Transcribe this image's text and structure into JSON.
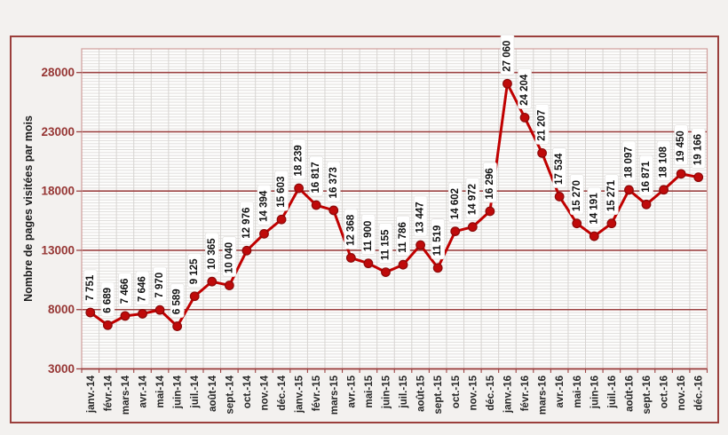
{
  "figure": {
    "background": "#f3f1ef",
    "border_color": "#9b3f3c",
    "plot_background": "#fdfdfc"
  },
  "chart_data": {
    "type": "line",
    "title": "",
    "xlabel": "",
    "ylabel": "Nombre de pages visitées par mois",
    "legend": "none",
    "categories": [
      "janv.-14",
      "févr.-14",
      "mars-14",
      "avr.-14",
      "mai-14",
      "juin-14",
      "juil.-14",
      "août-14",
      "sept.-14",
      "oct.-14",
      "nov.-14",
      "déc.-14",
      "janv.-15",
      "févr.-15",
      "mars-15",
      "avr.-15",
      "mai-15",
      "juin-15",
      "juil.-15",
      "août-15",
      "sept.-15",
      "oct.-15",
      "nov.-15",
      "déc.-15",
      "janv.-16",
      "févr.-16",
      "mars-16",
      "avr.-16",
      "mai-16",
      "juin-16",
      "juil.-16",
      "août-16",
      "sept.-16",
      "oct.-16",
      "nov.-16",
      "déc.-16"
    ],
    "values": [
      7751,
      6689,
      7466,
      7646,
      7970,
      6589,
      9125,
      10365,
      10040,
      12976,
      14394,
      15603,
      18239,
      16817,
      16373,
      12368,
      11900,
      11155,
      11786,
      13447,
      11519,
      14602,
      14972,
      16296,
      27060,
      24204,
      21207,
      17534,
      15270,
      14191,
      15271,
      18097,
      16871,
      18108,
      19450,
      19166
    ],
    "data_labels": [
      "7 751",
      "6 689",
      "7 466",
      "7 646",
      "7 970",
      "6 589",
      "9 125",
      "10 365",
      "10 040",
      "12 976",
      "14 394",
      "15 603",
      "18 239",
      "16 817",
      "16 373",
      "12 368",
      "11 900",
      "11 155",
      "11 786",
      "13 447",
      "11 519",
      "14 602",
      "14 972",
      "16 296",
      "27 060",
      "24 204",
      "21 207",
      "17 534",
      "15 270",
      "14 191",
      "15 271",
      "18 097",
      "16 871",
      "18 108",
      "19 450",
      "19 166"
    ],
    "y_ticks": [
      3000,
      8000,
      13000,
      18000,
      23000,
      28000
    ],
    "y_tick_labels": [
      "3000",
      "8000",
      "13000",
      "18000",
      "23000",
      "28000"
    ],
    "ylim": [
      3000,
      30000
    ],
    "y_minor_unit": 250,
    "grid": {
      "major_horizontal": true,
      "minor_horizontal": true,
      "vertical": true
    },
    "colors": {
      "series": "#c00000",
      "marker": "#bf0a0a",
      "marker_edge": "#8c0909",
      "major_grid": "#9c4242",
      "minor_grid": "#dedcda",
      "vertical_grid": "#d7d4d1",
      "plot_border": "#d19e9c",
      "y_tick_label": "#963634",
      "x_tick_label": "#262626",
      "label_box": "#ffffff"
    }
  }
}
